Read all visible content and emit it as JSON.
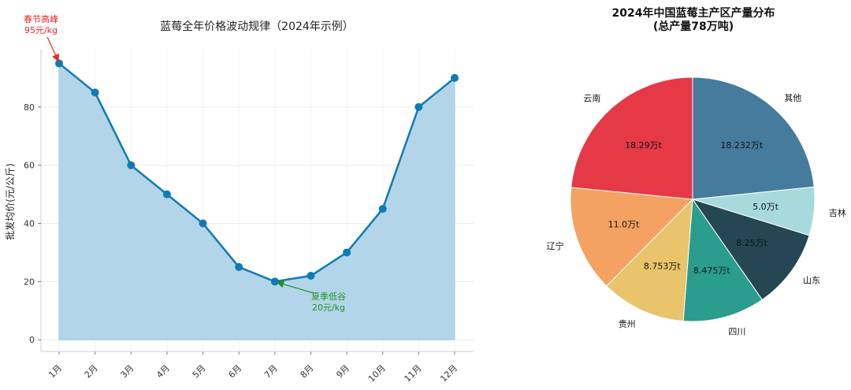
{
  "chart_data": [
    {
      "type": "area",
      "title": "蓝莓全年价格波动规律（2024年示例）",
      "xlabel": "",
      "ylabel": "批发均价(元/公斤)",
      "categories": [
        "1月",
        "2月",
        "3月",
        "4月",
        "5月",
        "6月",
        "7月",
        "8月",
        "9月",
        "10月",
        "11月",
        "12月"
      ],
      "series": [
        {
          "values": [
            95,
            85,
            60,
            50,
            40,
            25,
            20,
            22,
            30,
            45,
            80,
            90
          ]
        }
      ],
      "ylim": [
        -4,
        100
      ],
      "yticks": [
        0,
        20,
        40,
        60,
        80
      ],
      "grid": true,
      "annotations": [
        {
          "lines": [
            "春节高峰",
            "95元/kg"
          ],
          "category": "1月",
          "value": 95,
          "color": "#e8262b"
        },
        {
          "lines": [
            "夏季低谷",
            "20元/kg"
          ],
          "category": "7月",
          "value": 20,
          "color": "#1f9424"
        }
      ],
      "colors": {
        "line": "#0f7bb5",
        "fill": "#b3d5ea"
      }
    },
    {
      "type": "pie",
      "title": "2024年中国蓝莓主产区产量分布",
      "subtitle": "(总产量78万吨)",
      "slices": [
        {
          "label": "其他",
          "value": 18.232,
          "value_label": "18.232万t",
          "color": "#457b9d"
        },
        {
          "label": "吉林",
          "value": 5.0,
          "value_label": "5.0万t",
          "color": "#a8dadc"
        },
        {
          "label": "山东",
          "value": 8.25,
          "value_label": "8.25万t",
          "color": "#264653"
        },
        {
          "label": "四川",
          "value": 8.475,
          "value_label": "8.475万t",
          "color": "#2a9d8f"
        },
        {
          "label": "贵州",
          "value": 8.753,
          "value_label": "8.753万t",
          "color": "#e9c46a"
        },
        {
          "label": "辽宁",
          "value": 11.0,
          "value_label": "11.0万t",
          "color": "#f4a261"
        },
        {
          "label": "云南",
          "value": 18.29,
          "value_label": "18.29万t",
          "color": "#e63946"
        }
      ]
    }
  ]
}
